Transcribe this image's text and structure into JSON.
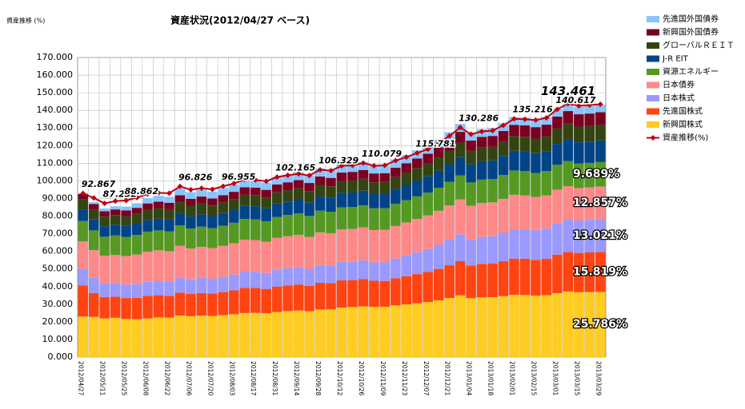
{
  "chart_data": {
    "type": "bar",
    "stacked": true,
    "title": "資産状況(2012/04/27 ベース)",
    "y_label": "資産推移 (%)",
    "categories": [
      "2012/04/27",
      null,
      "2012/05/11",
      null,
      "2012/05/25",
      null,
      "2012/06/08",
      null,
      "2012/06/22",
      null,
      "2012/07/06",
      null,
      "2012/07/20",
      null,
      "2012/08/03",
      null,
      "2012/08/17",
      null,
      "2012/08/31",
      null,
      "2012/09/14",
      null,
      "2012/09/28",
      null,
      "2012/10/12",
      null,
      "2012/10/26",
      null,
      "2012/11/09",
      null,
      "2012/11/23",
      null,
      "2012/12/07",
      null,
      "2012/12/21",
      null,
      "2013/01/04",
      null,
      "2013/01/18",
      null,
      "2013/02/01",
      null,
      "2013/02/15",
      null,
      "2013/03/01",
      null,
      "2013/03/15",
      null,
      "2013/03/29"
    ],
    "ylim": [
      0,
      170
    ],
    "yticks": [
      {
        "value": 0,
        "label": "0.000"
      },
      {
        "value": 10,
        "label": "10.000"
      },
      {
        "value": 20,
        "label": "20.000"
      },
      {
        "value": 30,
        "label": "30.000"
      },
      {
        "value": 40,
        "label": "40.000"
      },
      {
        "value": 50,
        "label": "50.000"
      },
      {
        "value": 60,
        "label": "60.000"
      },
      {
        "value": 70,
        "label": "70.000"
      },
      {
        "value": 80,
        "label": "80.000"
      },
      {
        "value": 90,
        "label": "90.000"
      },
      {
        "value": 100,
        "label": "100.000"
      },
      {
        "value": 110,
        "label": "110.000"
      },
      {
        "value": 120,
        "label": "120.000"
      },
      {
        "value": 130,
        "label": "130.000"
      },
      {
        "value": 140,
        "label": "140.000"
      },
      {
        "value": 150,
        "label": "150.000"
      },
      {
        "value": 160,
        "label": "160.000"
      },
      {
        "value": 170,
        "label": "170.000"
      }
    ],
    "grid": true,
    "legend": "right",
    "series": [
      {
        "name": "新興国株式",
        "color": "#FFCC22",
        "share_label": "25.786%",
        "values": [
          23.0,
          22.8,
          21.9,
          22.3,
          21.6,
          21.5,
          21.9,
          22.5,
          22.4,
          23.6,
          23.2,
          23.5,
          23.3,
          23.8,
          24.3,
          25.0,
          25.1,
          24.9,
          25.6,
          26.1,
          26.4,
          26.0,
          27.0,
          27.1,
          28.1,
          28.4,
          28.8,
          28.5,
          28.6,
          29.3,
          29.9,
          30.5,
          31.2,
          32.2,
          33.5,
          35.0,
          33.4,
          33.9,
          34.0,
          34.6,
          35.3,
          35.2,
          34.9,
          35.1,
          36.3,
          37.2,
          36.8,
          36.9,
          36.99
        ]
      },
      {
        "name": "先進国株式",
        "color": "#FF4411",
        "share_label": "15.819%",
        "values": [
          17.6,
          13.5,
          12.2,
          12.0,
          11.9,
          12.1,
          12.8,
          12.6,
          12.4,
          13.0,
          12.6,
          12.9,
          12.7,
          13.1,
          13.6,
          14.2,
          14.1,
          13.8,
          14.4,
          14.6,
          14.8,
          14.5,
          15.2,
          14.9,
          15.4,
          15.3,
          15.5,
          14.8,
          14.6,
          15.4,
          16.0,
          16.6,
          17.1,
          17.8,
          18.6,
          19.4,
          18.6,
          19.0,
          19.2,
          19.9,
          20.6,
          20.6,
          20.3,
          20.7,
          21.8,
          22.4,
          22.3,
          22.5,
          22.69
        ]
      },
      {
        "name": "日本株式",
        "color": "#9999FF",
        "share_label": "13.021%",
        "values": [
          9.4,
          8.6,
          7.9,
          7.8,
          7.6,
          7.8,
          8.0,
          8.2,
          8.1,
          8.6,
          8.3,
          8.5,
          8.4,
          8.6,
          8.9,
          9.3,
          9.2,
          9.0,
          9.5,
          9.7,
          9.9,
          9.6,
          10.1,
          10.0,
          10.4,
          10.4,
          10.6,
          10.5,
          10.7,
          11.2,
          11.8,
          12.4,
          13.0,
          13.7,
          14.5,
          15.3,
          14.7,
          15.2,
          15.4,
          16.0,
          16.7,
          16.8,
          16.8,
          17.1,
          17.9,
          18.6,
          18.4,
          18.5,
          18.68
        ]
      },
      {
        "name": "日本債券",
        "color": "#FF8888",
        "share_label": "12.857%",
        "values": [
          15.6,
          15.8,
          15.5,
          15.9,
          16.2,
          16.8,
          17.2,
          17.3,
          17.2,
          17.9,
          17.5,
          17.6,
          17.4,
          17.6,
          17.8,
          18.1,
          18.0,
          17.8,
          18.1,
          18.2,
          18.3,
          18.1,
          18.5,
          18.3,
          18.6,
          18.6,
          18.7,
          18.3,
          18.3,
          18.5,
          18.7,
          18.9,
          19.1,
          19.3,
          19.5,
          19.8,
          19.2,
          19.3,
          19.2,
          19.3,
          19.5,
          19.2,
          18.9,
          18.9,
          19.0,
          18.8,
          18.4,
          18.4,
          18.44
        ]
      },
      {
        "name": "資源エネルギー",
        "color": "#559922",
        "share_label": "9.689%",
        "values": [
          11.6,
          11.2,
          10.8,
          11.0,
          10.9,
          11.1,
          11.3,
          11.3,
          11.2,
          11.7,
          11.4,
          11.5,
          11.3,
          11.5,
          11.6,
          11.8,
          11.8,
          11.6,
          11.9,
          12.0,
          12.1,
          11.9,
          12.3,
          12.2,
          12.4,
          12.5,
          12.5,
          12.3,
          12.3,
          12.5,
          12.6,
          12.8,
          12.9,
          13.1,
          13.3,
          13.6,
          13.2,
          13.3,
          13.3,
          13.5,
          13.8,
          13.7,
          13.6,
          13.7,
          14.1,
          14.2,
          13.9,
          13.9,
          13.9
        ]
      },
      {
        "name": "J-R EIT",
        "color": "#004488",
        "values": [
          6.4,
          6.2,
          6.0,
          6.1,
          6.2,
          6.4,
          6.6,
          6.7,
          6.7,
          7.0,
          6.9,
          7.0,
          6.9,
          7.1,
          7.2,
          7.4,
          7.4,
          7.3,
          7.6,
          7.7,
          7.8,
          7.7,
          8.0,
          7.9,
          8.2,
          8.2,
          8.3,
          8.1,
          8.2,
          8.5,
          8.7,
          9.0,
          9.3,
          9.7,
          10.1,
          10.6,
          10.2,
          10.4,
          10.5,
          10.8,
          11.2,
          11.2,
          11.2,
          11.4,
          11.9,
          12.3,
          12.1,
          12.1,
          12.2
        ]
      },
      {
        "name": "グローバルＲＥＩＴ",
        "color": "#334411",
        "values": [
          5.8,
          5.6,
          5.4,
          5.5,
          5.5,
          5.6,
          5.8,
          5.9,
          5.9,
          6.1,
          6.0,
          6.1,
          6.0,
          6.1,
          6.2,
          6.3,
          6.3,
          6.2,
          6.4,
          6.4,
          6.5,
          6.4,
          6.6,
          6.5,
          6.7,
          6.7,
          6.8,
          6.7,
          6.7,
          6.9,
          7.0,
          7.1,
          7.3,
          7.5,
          7.7,
          8.0,
          7.7,
          7.8,
          7.8,
          8.0,
          8.3,
          8.3,
          8.3,
          8.4,
          8.7,
          9.0,
          8.9,
          8.9,
          9.0
        ]
      },
      {
        "name": "新興国外国債券",
        "color": "#7A0022",
        "values": [
          3.2,
          3.2,
          3.1,
          3.2,
          3.3,
          3.4,
          3.6,
          3.7,
          3.7,
          3.9,
          3.9,
          4.0,
          4.0,
          4.1,
          4.2,
          4.3,
          4.3,
          4.3,
          4.5,
          4.5,
          4.6,
          4.6,
          4.8,
          4.8,
          4.9,
          5.0,
          5.0,
          5.0,
          5.0,
          5.2,
          5.3,
          5.4,
          5.5,
          5.7,
          5.9,
          6.1,
          5.9,
          6.0,
          6.1,
          6.2,
          6.4,
          6.5,
          6.5,
          6.6,
          6.8,
          7.1,
          7.0,
          7.0,
          7.1
        ]
      },
      {
        "name": "先進国外国債券",
        "color": "#88C4FF",
        "values": [
          0.3,
          1.0,
          1.5,
          1.8,
          2.2,
          2.6,
          3.0,
          3.3,
          3.4,
          3.8,
          3.8,
          3.9,
          3.9,
          4.0,
          4.1,
          4.2,
          4.2,
          4.2,
          4.3,
          4.3,
          4.4,
          4.4,
          4.5,
          4.5,
          4.6,
          4.6,
          4.6,
          4.6,
          4.6,
          4.6,
          4.6,
          4.6,
          4.6,
          4.5,
          4.5,
          4.5,
          4.4,
          4.4,
          4.4,
          4.4,
          4.4,
          4.4,
          4.4,
          4.4,
          4.4,
          4.4,
          4.3,
          4.3,
          4.3
        ]
      }
    ],
    "line": {
      "name": "資産推移(%)",
      "color": "#C00010",
      "values": [
        92.867,
        90.3,
        87.232,
        88.5,
        88.862,
        90.5,
        92.5,
        93.2,
        93.0,
        96.826,
        95.0,
        95.8,
        95.2,
        96.955,
        98.5,
        100.8,
        100.5,
        99.8,
        102.165,
        103.2,
        104.0,
        103.0,
        106.329,
        105.8,
        108.5,
        108.8,
        110.079,
        108.6,
        108.8,
        111.5,
        113.5,
        115.781,
        118.0,
        121.5,
        125.5,
        130.286,
        126.5,
        128.0,
        128.5,
        131.5,
        135.216,
        135.0,
        134.5,
        135.8,
        140.617,
        143.8,
        142.6,
        143.0,
        143.461
      ],
      "value_labels": [
        "92.867",
        null,
        "87.232",
        null,
        "88.862",
        null,
        null,
        null,
        null,
        "96.826",
        null,
        null,
        null,
        "96.955",
        null,
        null,
        null,
        null,
        "102.165",
        null,
        null,
        null,
        "106.329",
        null,
        null,
        null,
        "110.079",
        null,
        null,
        null,
        null,
        "115.781",
        null,
        null,
        null,
        "130.286",
        null,
        null,
        null,
        null,
        "135.216",
        null,
        null,
        null,
        "140.617",
        null,
        null,
        null,
        "143.461"
      ]
    }
  }
}
